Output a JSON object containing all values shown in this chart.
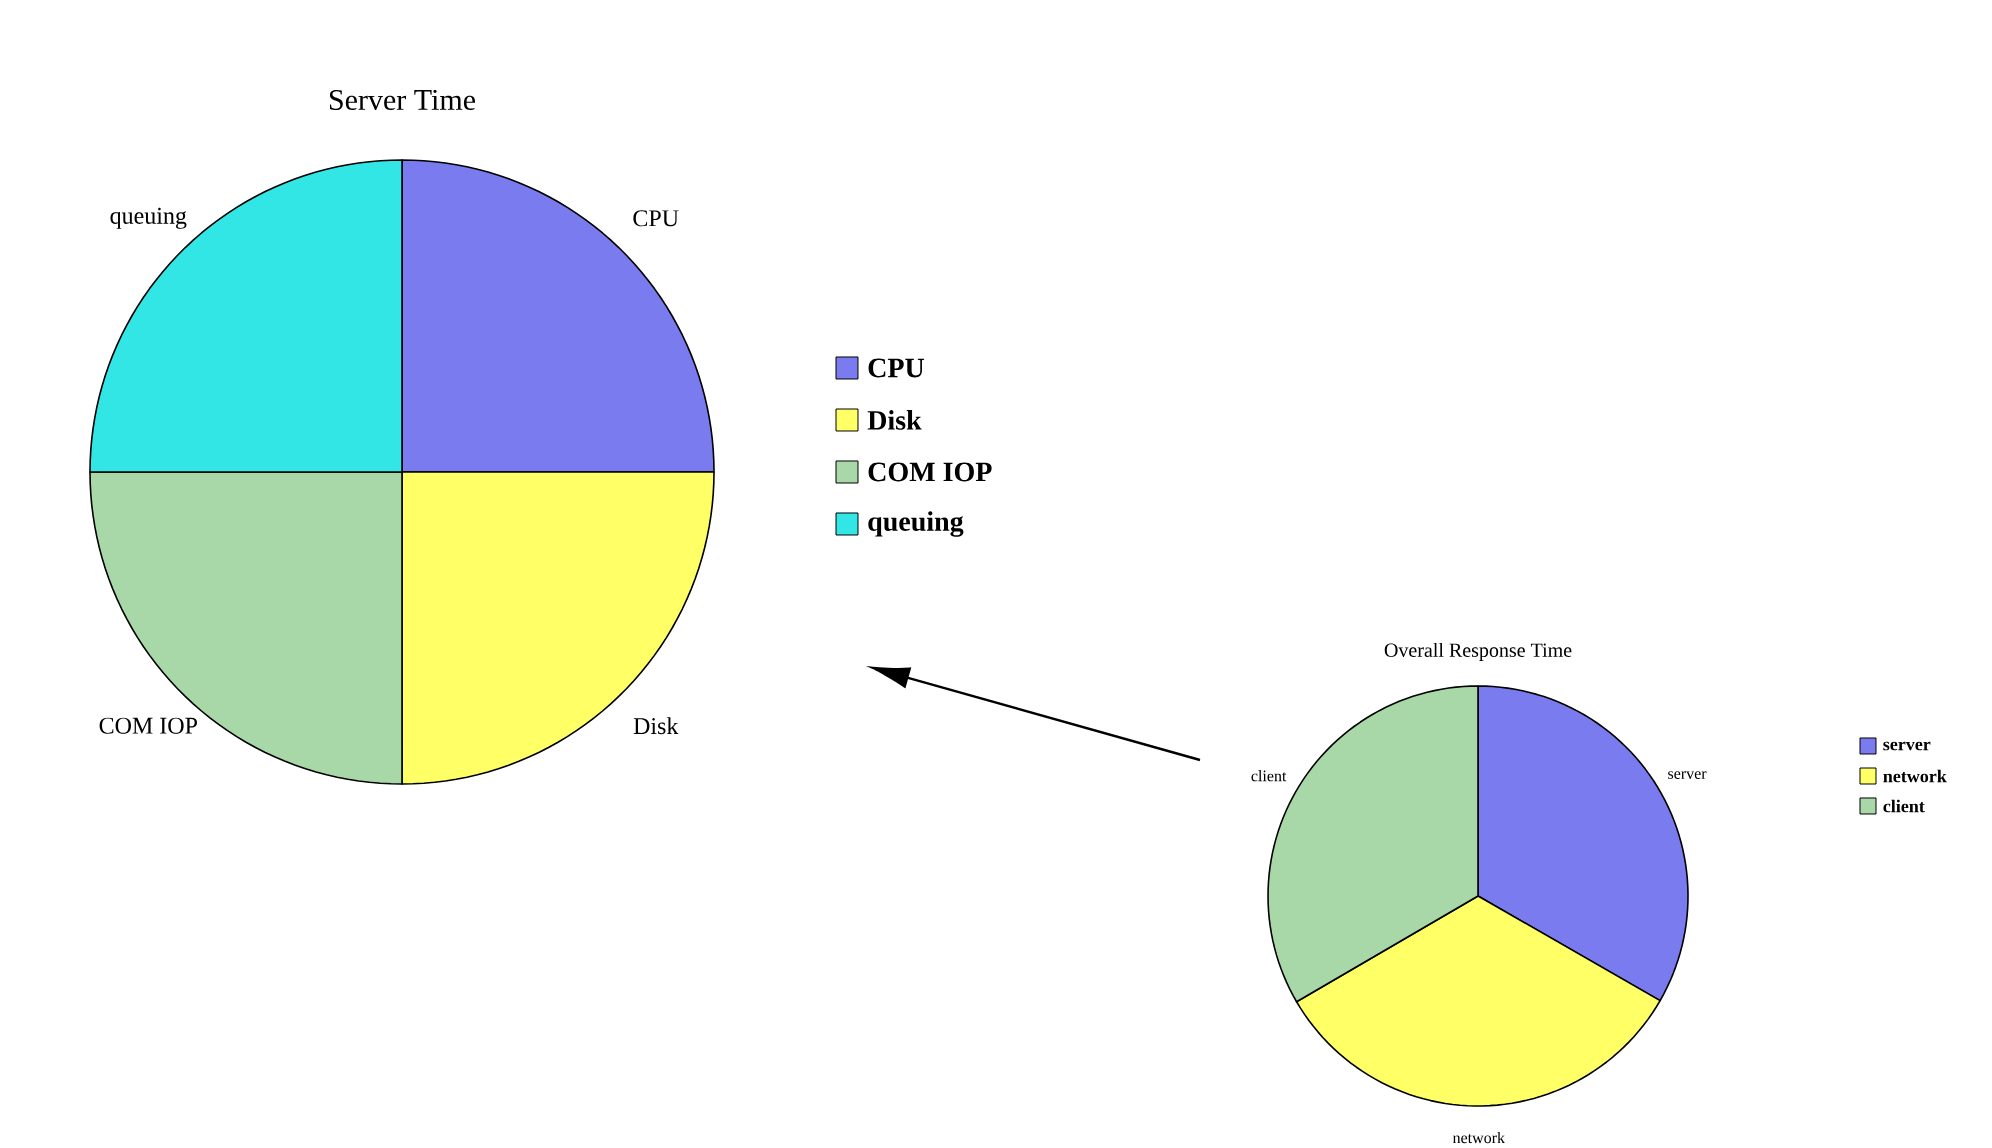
{
  "chart_data": [
    {
      "type": "pie",
      "title": "Server Time",
      "categories": [
        "CPU",
        "Disk",
        "COM IOP",
        "queuing"
      ],
      "values": [
        25,
        25,
        25,
        25
      ],
      "colors": [
        "#7b7bf0",
        "#ffff66",
        "#a8d8a8",
        "#33e6e6"
      ],
      "legend": "right"
    },
    {
      "type": "pie",
      "title": "Overall Response Time",
      "categories": [
        "server",
        "network",
        "client"
      ],
      "values": [
        33.3,
        33.3,
        33.4
      ],
      "colors": [
        "#7b7bf0",
        "#ffff66",
        "#a8d8a8"
      ],
      "legend": "right"
    }
  ]
}
